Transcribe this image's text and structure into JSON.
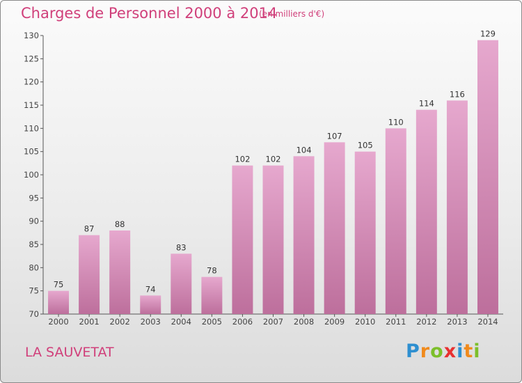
{
  "header": {
    "title": "Charges de Personnel 2000 à 2014",
    "unit": "(en milliers d'€)"
  },
  "footer": {
    "commune": "LA SAUVETAT",
    "logo_letters": [
      {
        "char": "P",
        "color": "#2e8fd0"
      },
      {
        "char": "r",
        "color": "#f08a1c"
      },
      {
        "char": "o",
        "color": "#7cbf2a"
      },
      {
        "char": "x",
        "color": "#e83030"
      },
      {
        "char": "i",
        "color": "#2e8fd0"
      },
      {
        "char": "t",
        "color": "#f08a1c"
      },
      {
        "char": "i",
        "color": "#7cbf2a"
      }
    ]
  },
  "colors": {
    "title": "#d03f7a",
    "bar_light": "#e6a8ce",
    "bar_dark": "#bd6f9c",
    "axis": "#555555"
  },
  "chart_data": {
    "type": "bar",
    "title": "Charges de Personnel 2000 à 2014",
    "subtitle": "(en milliers d'€)",
    "categories": [
      "2000",
      "2001",
      "2002",
      "2003",
      "2004",
      "2005",
      "2006",
      "2007",
      "2008",
      "2009",
      "2010",
      "2011",
      "2012",
      "2013",
      "2014"
    ],
    "values": [
      75,
      87,
      88,
      74,
      83,
      78,
      102,
      102,
      104,
      107,
      105,
      110,
      114,
      116,
      129
    ],
    "ylim": [
      70,
      130
    ],
    "yticks": [
      70,
      75,
      80,
      85,
      90,
      95,
      100,
      105,
      110,
      115,
      120,
      125,
      130
    ],
    "grid": false,
    "legend": "none"
  }
}
